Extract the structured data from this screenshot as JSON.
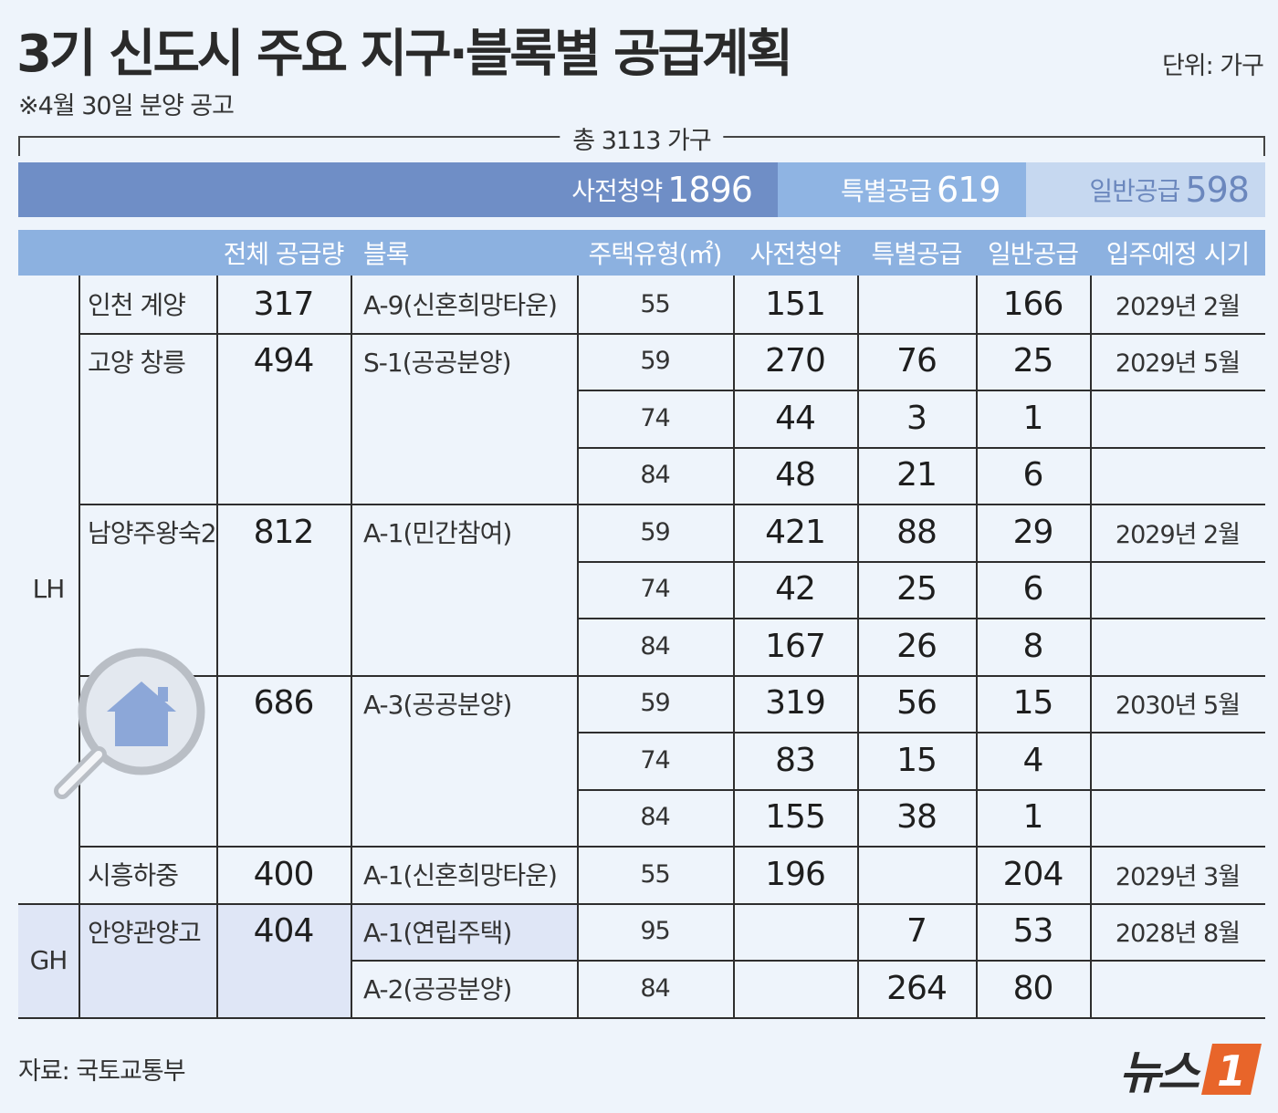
{
  "title": "3기 신도시 주요 지구·블록별 공급계획",
  "unit": "단위: 가구",
  "note": "※4월 30일 분양 공고",
  "total_label": "총 3113 가구",
  "source": "자료: 국토교통부",
  "logo_text": "뉴스",
  "colors": {
    "pre": "#6f8ec6",
    "special": "#8fb4e3",
    "general": "#c6d8f0",
    "header": "#8cb1e0",
    "background": "#eef4fb",
    "logo_accent": "#e8652a"
  },
  "chart_data": [
    {
      "type": "bar",
      "orientation": "horizontal-stacked",
      "total": 3113,
      "series": [
        {
          "name": "사전청약",
          "value": 1896
        },
        {
          "name": "특별공급",
          "value": 619
        },
        {
          "name": "일반공급",
          "value": 598
        }
      ]
    },
    {
      "type": "table",
      "headers": [
        "",
        "",
        "전체 공급량",
        "블록",
        "주택유형(㎡)",
        "사전청약",
        "특별공급",
        "일반공급",
        "입주예정 시기"
      ],
      "groups": [
        {
          "name": "LH"
        },
        {
          "name": "GH"
        }
      ],
      "districts": [
        {
          "name": "인천 계양",
          "total": "317"
        },
        {
          "name": "고양 창릉",
          "total": "494"
        },
        {
          "name": "남양주왕숙2",
          "total": "812"
        },
        {
          "name": "",
          "total": "686"
        },
        {
          "name": "시흥하중",
          "total": "400"
        },
        {
          "name": "안양관양고",
          "total": "404"
        }
      ],
      "blocks": [
        {
          "name": "A-9(신혼희망타운)"
        },
        {
          "name": "S-1(공공분양)"
        },
        {
          "name": "A-1(민간참여)"
        },
        {
          "name": "A-3(공공분양)"
        },
        {
          "name": "A-1(신혼희망타운)"
        },
        {
          "name": "A-1(연립주택)"
        },
        {
          "name": "A-2(공공분양)"
        }
      ],
      "rows": [
        {
          "type": "55",
          "pre": "151",
          "special": "",
          "general": "166",
          "move_in": "2029년 2월"
        },
        {
          "type": "59",
          "pre": "270",
          "special": "76",
          "general": "25",
          "move_in": "2029년 5월"
        },
        {
          "type": "74",
          "pre": "44",
          "special": "3",
          "general": "1",
          "move_in": ""
        },
        {
          "type": "84",
          "pre": "48",
          "special": "21",
          "general": "6",
          "move_in": ""
        },
        {
          "type": "59",
          "pre": "421",
          "special": "88",
          "general": "29",
          "move_in": "2029년 2월"
        },
        {
          "type": "74",
          "pre": "42",
          "special": "25",
          "general": "6",
          "move_in": ""
        },
        {
          "type": "84",
          "pre": "167",
          "special": "26",
          "general": "8",
          "move_in": ""
        },
        {
          "type": "59",
          "pre": "319",
          "special": "56",
          "general": "15",
          "move_in": "2030년 5월"
        },
        {
          "type": "74",
          "pre": "83",
          "special": "15",
          "general": "4",
          "move_in": ""
        },
        {
          "type": "84",
          "pre": "155",
          "special": "38",
          "general": "1",
          "move_in": ""
        },
        {
          "type": "55",
          "pre": "196",
          "special": "",
          "general": "204",
          "move_in": "2029년 3월"
        },
        {
          "type": "95",
          "pre": "",
          "special": "7",
          "general": "53",
          "move_in": "2028년 8월"
        },
        {
          "type": "84",
          "pre": "",
          "special": "264",
          "general": "80",
          "move_in": ""
        }
      ]
    }
  ]
}
